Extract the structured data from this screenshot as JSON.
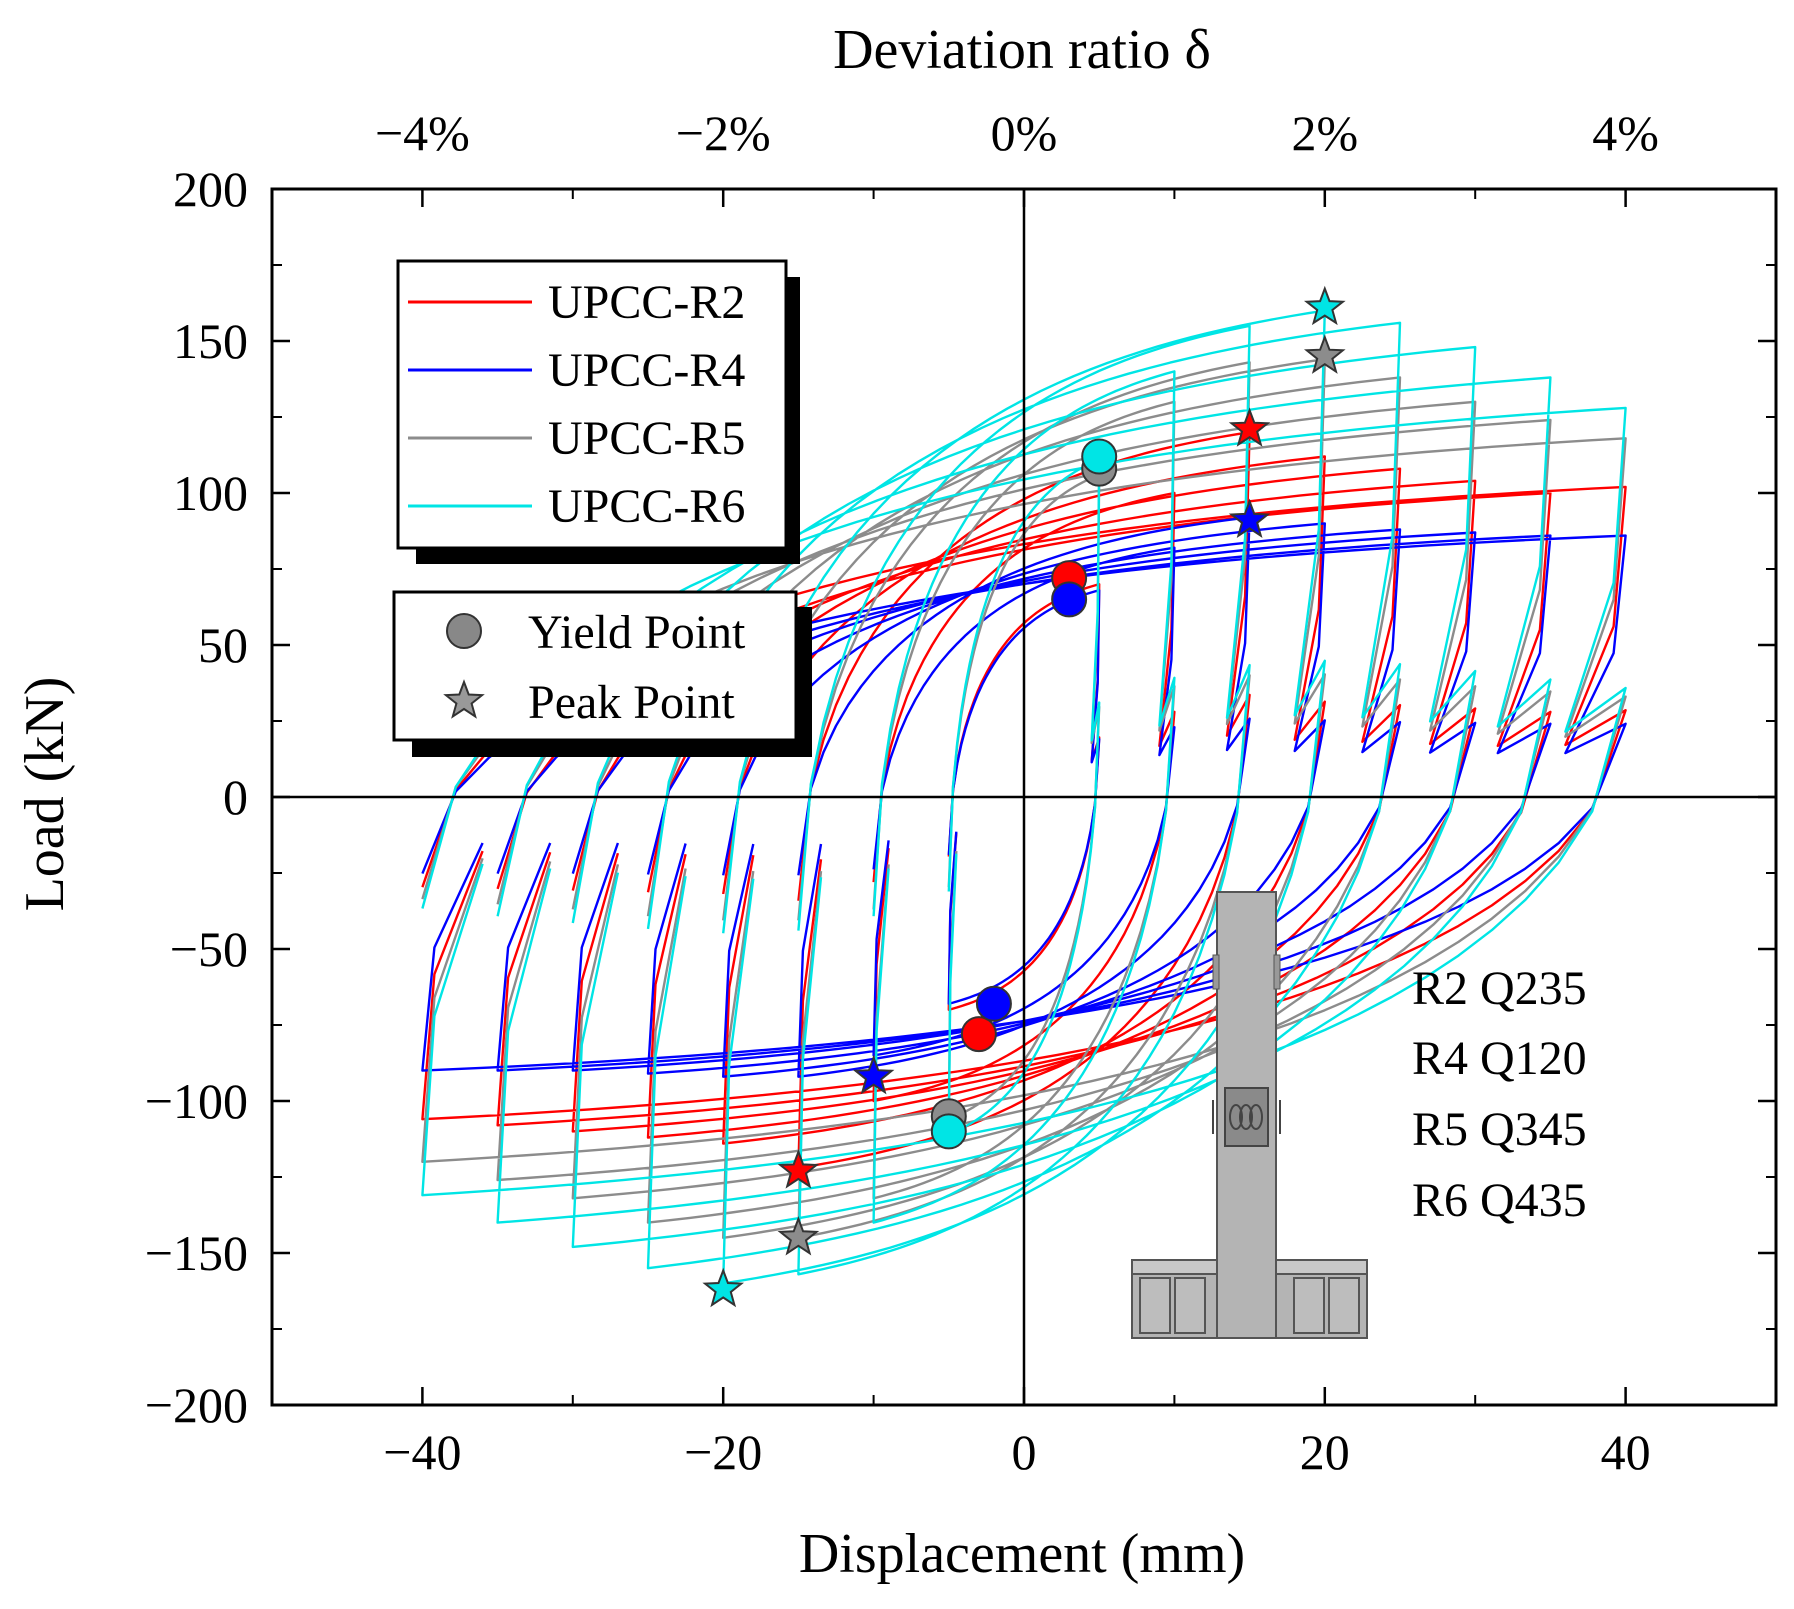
{
  "chart_data": {
    "type": "line",
    "title": "",
    "xlabel": "Displacement (mm)",
    "ylabel": "Load (kN)",
    "top_axis_label": "Deviation ratio δ",
    "xlim": [
      -50,
      50
    ],
    "ylim": [
      -200,
      200
    ],
    "x_ticks": [
      -40,
      -20,
      0,
      20,
      40
    ],
    "x_tick_labels": [
      "−40",
      "−20",
      "0",
      "20",
      "40"
    ],
    "y_ticks": [
      200,
      150,
      100,
      50,
      0,
      -50,
      -100,
      -150,
      -200
    ],
    "y_tick_labels": [
      "200",
      "150",
      "100",
      "50",
      "0",
      "−50",
      "−100",
      "−150",
      "−200"
    ],
    "top_ticks": [
      -40,
      -20,
      0,
      20,
      40
    ],
    "top_tick_labels": [
      "−4%",
      "−2%",
      "0%",
      "2%",
      "4%"
    ],
    "legend_position": "top-left",
    "series": [
      {
        "name": "UPCC-R2",
        "color": "#ff0000",
        "amplitudes": [
          5,
          10,
          15,
          20,
          25,
          30,
          35,
          40
        ],
        "pos_peaks": [
          70,
          100,
          120,
          112,
          108,
          104,
          100,
          102
        ],
        "neg_peaks": [
          -70,
          -100,
          -122,
          -114,
          -112,
          -110,
          -108,
          -106
        ],
        "yield_point": [
          3,
          72
        ],
        "yield_point_neg": [
          -3,
          -78
        ],
        "peak_point": [
          15,
          121
        ],
        "peak_point_neg": [
          -15,
          -123
        ]
      },
      {
        "name": "UPCC-R4",
        "color": "#0000ff",
        "amplitudes": [
          5,
          10,
          15,
          20,
          25,
          30,
          35,
          40
        ],
        "pos_peaks": [
          68,
          82,
          92,
          90,
          88,
          87,
          86,
          86
        ],
        "neg_peaks": [
          -68,
          -85,
          -92,
          -92,
          -91,
          -90,
          -90,
          -90
        ],
        "yield_point": [
          3,
          65
        ],
        "yield_point_neg": [
          -2,
          -68
        ],
        "peak_point": [
          15,
          91
        ],
        "peak_point_neg": [
          -10,
          -92
        ]
      },
      {
        "name": "UPCC-R5",
        "color": "#8c8c8c",
        "amplitudes": [
          5,
          10,
          15,
          20,
          25,
          30,
          35,
          40
        ],
        "pos_peaks": [
          106,
          130,
          143,
          144,
          138,
          130,
          124,
          118
        ],
        "neg_peaks": [
          -106,
          -132,
          -145,
          -145,
          -140,
          -132,
          -126,
          -120
        ],
        "yield_point": [
          5,
          108
        ],
        "yield_point_neg": [
          -5,
          -105
        ],
        "peak_point": [
          20,
          145
        ],
        "peak_point_neg": [
          -15,
          -145
        ]
      },
      {
        "name": "UPCC-R6",
        "color": "#00e5e5",
        "amplitudes": [
          5,
          10,
          15,
          20,
          25,
          30,
          35,
          40
        ],
        "pos_peaks": [
          111,
          140,
          155,
          160,
          156,
          148,
          138,
          128
        ],
        "neg_peaks": [
          -111,
          -140,
          -157,
          -160,
          -155,
          -148,
          -140,
          -131
        ],
        "yield_point": [
          5,
          112
        ],
        "yield_point_neg": [
          -5,
          -110
        ],
        "peak_point": [
          20,
          161
        ],
        "peak_point_neg": [
          -20,
          -162
        ]
      }
    ],
    "marker_legend": [
      {
        "label": "Yield Point",
        "marker": "circle"
      },
      {
        "label": "Peak Point",
        "marker": "star"
      }
    ],
    "annotation_lines": [
      "R2 Q235",
      "R4 Q120",
      "R5 Q345",
      "R6 Q435"
    ]
  }
}
